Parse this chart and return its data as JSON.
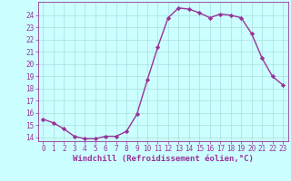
{
  "x": [
    0,
    1,
    2,
    3,
    4,
    5,
    6,
    7,
    8,
    9,
    10,
    11,
    12,
    13,
    14,
    15,
    16,
    17,
    18,
    19,
    20,
    21,
    22,
    23
  ],
  "y": [
    15.5,
    15.2,
    14.7,
    14.1,
    13.9,
    13.9,
    14.1,
    14.1,
    14.5,
    15.9,
    18.7,
    21.4,
    23.8,
    24.6,
    24.5,
    24.2,
    23.8,
    24.1,
    24.0,
    23.8,
    22.5,
    20.5,
    19.0,
    18.3
  ],
  "line_color": "#993399",
  "marker": "D",
  "marker_size": 2.2,
  "linewidth": 1.0,
  "xlabel": "Windchill (Refroidissement éolien,°C)",
  "xlabel_fontsize": 6.5,
  "bg_color": "#ccffff",
  "grid_color": "#aadddd",
  "tick_label_color": "#993399",
  "axis_label_color": "#993399",
  "xlim_min": -0.5,
  "xlim_max": 23.5,
  "ylim_min": 13.7,
  "ylim_max": 25.1,
  "yticks": [
    14,
    15,
    16,
    17,
    18,
    19,
    20,
    21,
    22,
    23,
    24
  ],
  "xticks": [
    0,
    1,
    2,
    3,
    4,
    5,
    6,
    7,
    8,
    9,
    10,
    11,
    12,
    13,
    14,
    15,
    16,
    17,
    18,
    19,
    20,
    21,
    22,
    23
  ],
  "tick_fontsize": 5.5
}
